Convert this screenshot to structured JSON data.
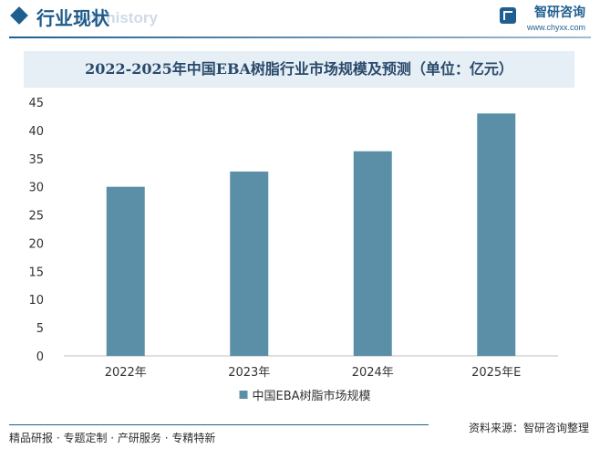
{
  "header": {
    "section_title": "行业现状",
    "section_subtitle": "ent history",
    "logo_name": "智研咨询",
    "logo_url": "www.chyxx.com"
  },
  "chart_data": {
    "type": "bar",
    "title": "2022-2025年中国EBA树脂行业市场规模及预测（单位：亿元）",
    "categories": [
      "2022年",
      "2023年",
      "2024年",
      "2025年E"
    ],
    "series": [
      {
        "name": "中国EBA树脂市场规模",
        "values": [
          30.0,
          32.7,
          36.3,
          43.0
        ]
      }
    ],
    "ylim": [
      0,
      45
    ],
    "yticks": [
      0,
      5,
      10,
      15,
      20,
      25,
      30,
      35,
      40,
      45
    ],
    "xlabel": "",
    "ylabel": "",
    "grid": false,
    "legend_position": "bottom-center",
    "bar_color": "#5b8fa8"
  },
  "footer": {
    "tags": "精品研报 · 专题定制 · 产研服务 · 专精特新",
    "source": "资料来源：智研咨询整理"
  }
}
